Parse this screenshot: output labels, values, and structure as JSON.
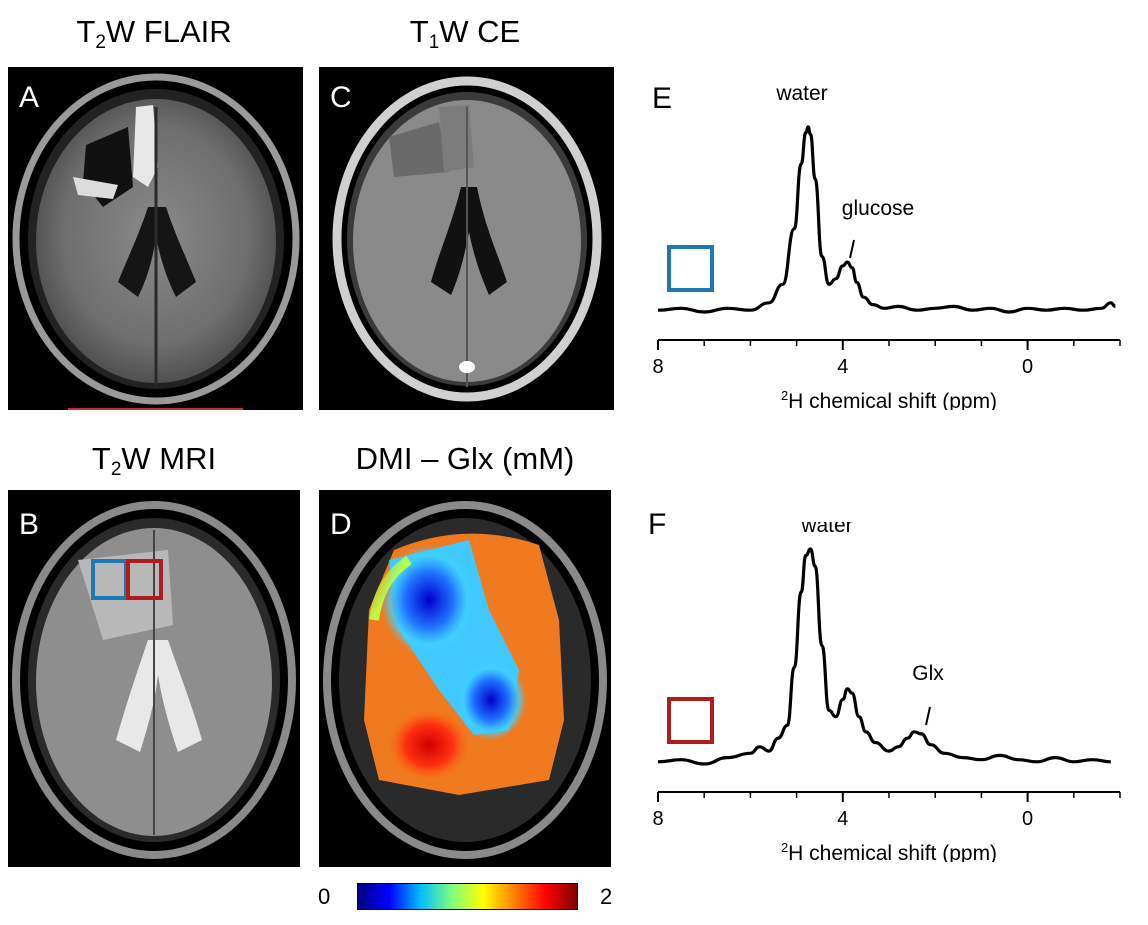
{
  "colors": {
    "roi_blue": "#1f77b4",
    "roi_red": "#b01c1c",
    "spectrum": "#000000",
    "colormap": [
      "#00007f",
      "#0000ff",
      "#00bfff",
      "#7fff7f",
      "#ffff00",
      "#ff7f00",
      "#ff0000",
      "#7f0000"
    ]
  },
  "panels": {
    "A": {
      "label": "A",
      "title_main": "T",
      "title_sub": "2",
      "title_rest": "W FLAIR"
    },
    "B": {
      "label": "B",
      "title_main": "T",
      "title_sub": "2",
      "title_rest": "W MRI"
    },
    "C": {
      "label": "C",
      "title_main": "T",
      "title_sub": "1",
      "title_rest": "W CE"
    },
    "D": {
      "label": "D",
      "title": "DMI – Glx (mM)",
      "colorbar_min": "0",
      "colorbar_max": "2"
    },
    "E": {
      "label": "E",
      "peak1": "water",
      "peak2": "glucose",
      "roi": "blue"
    },
    "F": {
      "label": "F",
      "peak1": "water",
      "peak2": "Glx",
      "roi": "red"
    }
  },
  "chart_data": [
    {
      "type": "line",
      "panel": "E",
      "xlabel_sup": "2",
      "xlabel": "H chemical shift (ppm)",
      "xlim": [
        8,
        -2
      ],
      "xticks": [
        "8",
        "4",
        "0"
      ],
      "annotations": [
        "water",
        "glucose"
      ],
      "x": [
        8.0,
        7.5,
        7.0,
        6.5,
        6.0,
        5.6,
        5.3,
        5.05,
        4.9,
        4.8,
        4.75,
        4.7,
        4.6,
        4.45,
        4.3,
        4.15,
        4.0,
        3.9,
        3.8,
        3.7,
        3.55,
        3.35,
        3.1,
        2.8,
        2.4,
        2.0,
        1.6,
        1.2,
        0.8,
        0.4,
        0.0,
        -0.4,
        -0.8,
        -1.2,
        -1.6,
        -1.8,
        -1.9
      ],
      "y": [
        0.01,
        0.02,
        0.0,
        0.02,
        0.01,
        0.05,
        0.15,
        0.45,
        0.8,
        0.97,
        1.0,
        0.96,
        0.72,
        0.3,
        0.15,
        0.18,
        0.25,
        0.27,
        0.24,
        0.16,
        0.08,
        0.04,
        0.02,
        0.03,
        0.01,
        0.02,
        0.03,
        0.01,
        0.02,
        0.0,
        0.02,
        0.01,
        0.02,
        0.01,
        0.02,
        0.05,
        0.03
      ]
    },
    {
      "type": "line",
      "panel": "F",
      "xlabel_sup": "2",
      "xlabel": "H chemical shift (ppm)",
      "xlim": [
        8,
        -2
      ],
      "xticks": [
        "8",
        "4",
        "0"
      ],
      "annotations": [
        "water",
        "Glx"
      ],
      "x": [
        8.0,
        7.5,
        7.0,
        6.5,
        6.0,
        5.8,
        5.6,
        5.4,
        5.2,
        5.05,
        4.9,
        4.8,
        4.7,
        4.6,
        4.45,
        4.3,
        4.15,
        4.0,
        3.9,
        3.8,
        3.65,
        3.5,
        3.3,
        3.0,
        2.8,
        2.6,
        2.45,
        2.3,
        2.1,
        1.8,
        1.4,
        1.0,
        0.6,
        0.2,
        -0.2,
        -0.6,
        -1.0,
        -1.4,
        -1.8
      ],
      "y": [
        0.01,
        0.02,
        0.0,
        0.03,
        0.05,
        0.08,
        0.06,
        0.12,
        0.18,
        0.45,
        0.8,
        0.97,
        1.0,
        0.92,
        0.55,
        0.25,
        0.22,
        0.3,
        0.35,
        0.33,
        0.22,
        0.15,
        0.1,
        0.06,
        0.08,
        0.12,
        0.15,
        0.14,
        0.09,
        0.05,
        0.03,
        0.02,
        0.04,
        0.02,
        0.01,
        0.03,
        0.01,
        0.02,
        0.01
      ]
    }
  ]
}
